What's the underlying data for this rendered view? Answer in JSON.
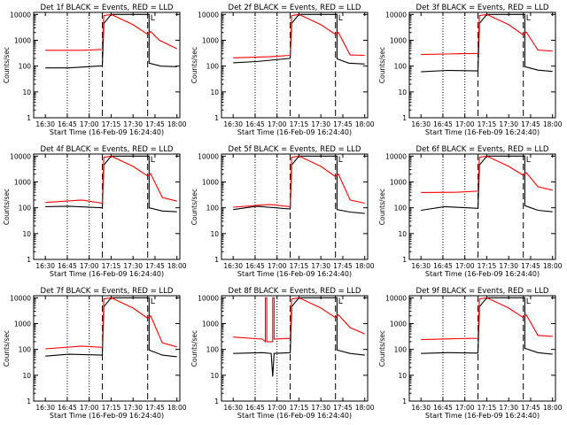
{
  "chart_data": {
    "type": "line",
    "ylabel": "Counts/sec",
    "xlabel": "Start Time (16-Feb-09 16:24:40)",
    "x_ticks": [
      "16:30",
      "16:45",
      "17:00",
      "17:15",
      "17:30",
      "17:45",
      "18:00"
    ],
    "y_ticks": [
      "1",
      "10",
      "100",
      "1000",
      "10000"
    ],
    "yscale": "log",
    "ylim": [
      1,
      12000
    ],
    "colors": {
      "events": "#000000",
      "lld": "#ff0000"
    },
    "vlines": {
      "dotted": [
        "16:45",
        "17:00"
      ],
      "dashed": [
        "17:09",
        "17:40"
      ]
    },
    "marker_text": "L",
    "panels": [
      {
        "title": "Det 1f BLACK = Events, RED = LLD",
        "series": [
          {
            "color": "black",
            "values": [
              [
                0,
                85
              ],
              [
                16,
                85
              ],
              [
                39,
                103
              ],
              [
                40,
                4500
              ],
              [
                45,
                10000
              ],
              [
                71,
                10000
              ],
              [
                71,
                130
              ],
              [
                79,
                100
              ],
              [
                90,
                95
              ]
            ]
          },
          {
            "color": "red",
            "values": [
              [
                0,
                410
              ],
              [
                25,
                410
              ],
              [
                39,
                440
              ],
              [
                40,
                9000
              ],
              [
                45,
                10000
              ],
              [
                60,
                4000
              ],
              [
                70,
                1700
              ],
              [
                72,
                2200
              ],
              [
                78,
                1000
              ],
              [
                90,
                470
              ]
            ]
          }
        ]
      },
      {
        "title": "Det 2f BLACK = Events, RED = LLD",
        "series": [
          {
            "color": "black",
            "values": [
              [
                0,
                135
              ],
              [
                16,
                150
              ],
              [
                39,
                200
              ],
              [
                40,
                4500
              ],
              [
                45,
                10000
              ],
              [
                71,
                10000
              ],
              [
                71,
                190
              ],
              [
                79,
                130
              ],
              [
                90,
                120
              ]
            ]
          },
          {
            "color": "red",
            "values": [
              [
                0,
                210
              ],
              [
                25,
                230
              ],
              [
                39,
                260
              ],
              [
                40,
                9000
              ],
              [
                45,
                10000
              ],
              [
                60,
                4000
              ],
              [
                70,
                1700
              ],
              [
                72,
                2000
              ],
              [
                80,
                270
              ],
              [
                90,
                260
              ]
            ]
          }
        ]
      },
      {
        "title": "Det 3f BLACK = Events, RED = LLD",
        "series": [
          {
            "color": "black",
            "values": [
              [
                0,
                60
              ],
              [
                18,
                68
              ],
              [
                39,
                65
              ],
              [
                40,
                4500
              ],
              [
                45,
                10000
              ],
              [
                71,
                10000
              ],
              [
                71,
                95
              ],
              [
                80,
                70
              ],
              [
                90,
                62
              ]
            ]
          },
          {
            "color": "red",
            "values": [
              [
                0,
                280
              ],
              [
                25,
                300
              ],
              [
                39,
                310
              ],
              [
                40,
                9000
              ],
              [
                45,
                10000
              ],
              [
                60,
                4000
              ],
              [
                70,
                1600
              ],
              [
                72,
                2100
              ],
              [
                80,
                420
              ],
              [
                90,
                380
              ]
            ]
          }
        ]
      },
      {
        "title": "Det 4f BLACK = Events, RED = LLD",
        "series": [
          {
            "color": "black",
            "values": [
              [
                0,
                110
              ],
              [
                16,
                115
              ],
              [
                39,
                100
              ],
              [
                40,
                4500
              ],
              [
                45,
                10000
              ],
              [
                71,
                10000
              ],
              [
                71,
                100
              ],
              [
                80,
                75
              ],
              [
                90,
                70
              ]
            ]
          },
          {
            "color": "red",
            "values": [
              [
                0,
                160
              ],
              [
                25,
                200
              ],
              [
                39,
                150
              ],
              [
                40,
                9000
              ],
              [
                45,
                10000
              ],
              [
                60,
                4000
              ],
              [
                70,
                1700
              ],
              [
                72,
                2100
              ],
              [
                80,
                250
              ],
              [
                90,
                180
              ]
            ]
          }
        ]
      },
      {
        "title": "Det 5f BLACK = Events, RED = LLD",
        "series": [
          {
            "color": "black",
            "values": [
              [
                0,
                85
              ],
              [
                16,
                115
              ],
              [
                39,
                90
              ],
              [
                40,
                4500
              ],
              [
                45,
                10000
              ],
              [
                71,
                10000
              ],
              [
                71,
                85
              ],
              [
                80,
                68
              ],
              [
                90,
                60
              ]
            ]
          },
          {
            "color": "red",
            "values": [
              [
                0,
                105
              ],
              [
                25,
                135
              ],
              [
                39,
                110
              ],
              [
                40,
                9000
              ],
              [
                45,
                10000
              ],
              [
                60,
                4000
              ],
              [
                70,
                1600
              ],
              [
                72,
                2000
              ],
              [
                80,
                200
              ],
              [
                90,
                150
              ]
            ]
          }
        ]
      },
      {
        "title": "Det 6f BLACK = Events, RED = LLD",
        "series": [
          {
            "color": "black",
            "values": [
              [
                0,
                80
              ],
              [
                16,
                110
              ],
              [
                39,
                95
              ],
              [
                40,
                4500
              ],
              [
                45,
                10000
              ],
              [
                71,
                10000
              ],
              [
                71,
                120
              ],
              [
                80,
                80
              ],
              [
                90,
                70
              ]
            ]
          },
          {
            "color": "red",
            "values": [
              [
                0,
                390
              ],
              [
                25,
                400
              ],
              [
                39,
                440
              ],
              [
                40,
                9000
              ],
              [
                45,
                10000
              ],
              [
                60,
                4000
              ],
              [
                70,
                1800
              ],
              [
                72,
                2300
              ],
              [
                80,
                650
              ],
              [
                90,
                480
              ]
            ]
          }
        ]
      },
      {
        "title": "Det 7f BLACK = Events, RED = LLD",
        "series": [
          {
            "color": "black",
            "values": [
              [
                0,
                55
              ],
              [
                16,
                65
              ],
              [
                39,
                60
              ],
              [
                40,
                4500
              ],
              [
                45,
                10000
              ],
              [
                71,
                10000
              ],
              [
                71,
                95
              ],
              [
                80,
                60
              ],
              [
                90,
                52
              ]
            ]
          },
          {
            "color": "red",
            "values": [
              [
                0,
                105
              ],
              [
                25,
                135
              ],
              [
                39,
                120
              ],
              [
                40,
                9000
              ],
              [
                45,
                10000
              ],
              [
                60,
                4000
              ],
              [
                70,
                1600
              ],
              [
                72,
                2000
              ],
              [
                80,
                180
              ],
              [
                90,
                125
              ]
            ]
          }
        ]
      },
      {
        "title": "Det 8f BLACK = Events, RED = LLD",
        "series": [
          {
            "color": "black",
            "values": [
              [
                0,
                70
              ],
              [
                20,
                75
              ],
              [
                26,
                70
              ],
              [
                27,
                9
              ],
              [
                28,
                70
              ],
              [
                39,
                75
              ],
              [
                40,
                4500
              ],
              [
                45,
                10000
              ],
              [
                71,
                10000
              ],
              [
                71,
                95
              ],
              [
                80,
                70
              ],
              [
                90,
                60
              ]
            ]
          },
          {
            "color": "red",
            "values": [
              [
                0,
                300
              ],
              [
                20,
                250
              ],
              [
                22,
                200
              ],
              [
                22,
                10000
              ],
              [
                23,
                10000
              ],
              [
                23,
                200
              ],
              [
                27,
                200
              ],
              [
                27,
                10000
              ],
              [
                28,
                10000
              ],
              [
                28,
                250
              ],
              [
                39,
                270
              ],
              [
                40,
                9000
              ],
              [
                45,
                10000
              ],
              [
                60,
                4000
              ],
              [
                70,
                1700
              ],
              [
                72,
                2200
              ],
              [
                80,
                700
              ],
              [
                90,
                400
              ]
            ]
          }
        ]
      },
      {
        "title": "Det 9f BLACK = Events, RED = LLD",
        "series": [
          {
            "color": "black",
            "values": [
              [
                0,
                70
              ],
              [
                18,
                75
              ],
              [
                39,
                72
              ],
              [
                40,
                4500
              ],
              [
                45,
                10000
              ],
              [
                71,
                10000
              ],
              [
                71,
                110
              ],
              [
                80,
                75
              ],
              [
                90,
                65
              ]
            ]
          },
          {
            "color": "red",
            "values": [
              [
                0,
                240
              ],
              [
                25,
                260
              ],
              [
                39,
                270
              ],
              [
                40,
                9000
              ],
              [
                45,
                10000
              ],
              [
                60,
                4000
              ],
              [
                70,
                1700
              ],
              [
                72,
                2200
              ],
              [
                80,
                350
              ],
              [
                90,
                320
              ]
            ]
          }
        ]
      }
    ]
  }
}
